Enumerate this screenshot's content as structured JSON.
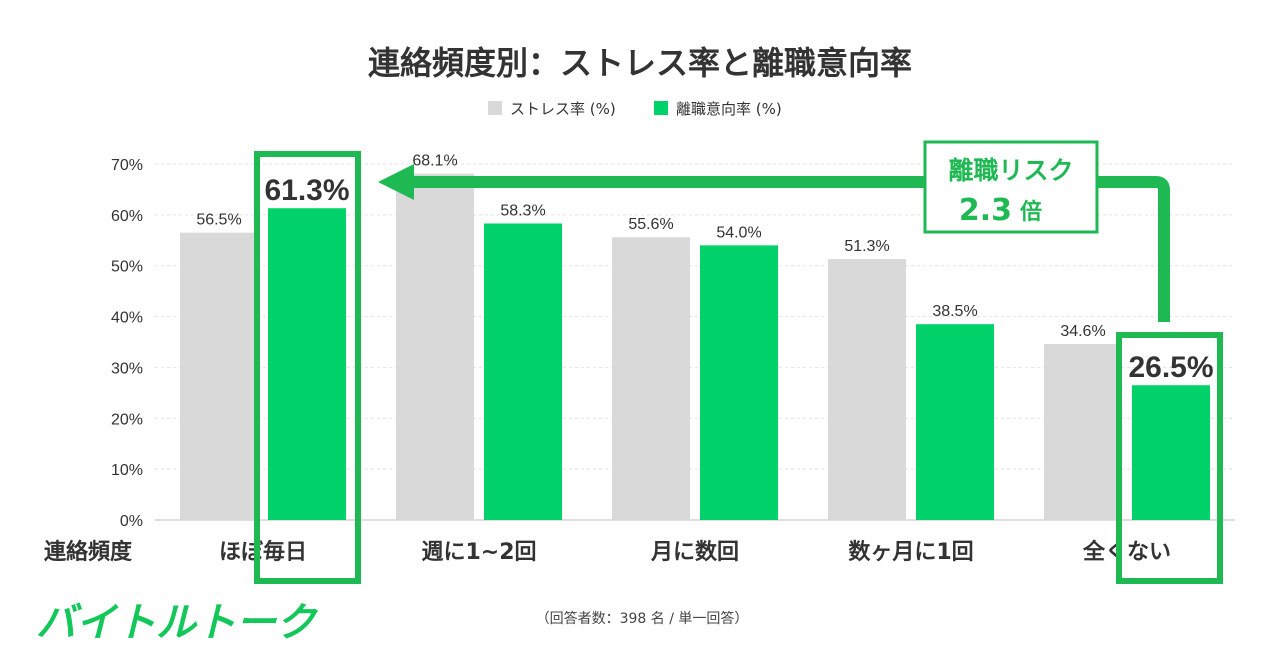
{
  "chart_data": {
    "type": "bar",
    "title": "連絡頻度別：ストレス率と離職意向率",
    "xlabel": "連絡頻度",
    "ylabel": "",
    "ylim": [
      0,
      70
    ],
    "yticks": [
      "0%",
      "10%",
      "20%",
      "30%",
      "40%",
      "50%",
      "60%",
      "70%"
    ],
    "categories": [
      "ほぼ毎日",
      "週に1~2回",
      "月に数回",
      "数ヶ月に1回",
      "全くない"
    ],
    "series": [
      {
        "name": "ストレス率 (%)",
        "color": "#d9d9d9",
        "values": [
          56.5,
          68.1,
          55.6,
          51.3,
          34.6
        ],
        "labels": [
          "56.5%",
          "68.1%",
          "55.6%",
          "51.3%",
          "34.6%"
        ]
      },
      {
        "name": "離職意向率 (%)",
        "color": "#00d26a",
        "values": [
          61.3,
          58.3,
          54.0,
          38.5,
          26.5
        ],
        "labels": [
          "61.3%",
          "58.3%",
          "54.0%",
          "38.5%",
          "26.5%"
        ]
      }
    ],
    "highlighted_categories": [
      0,
      4
    ],
    "callout": {
      "line1": "離職リスク",
      "value": "2.3",
      "unit": "倍"
    },
    "grid": true,
    "legend": "top-center"
  },
  "footnote": "（回答者数：398 名 / 単一回答）",
  "brand": {
    "logo_text": "バイトルトーク"
  },
  "colors": {
    "highlight": "#1fb954",
    "bar_gray": "#d9d9d9",
    "bar_green": "#00d26a",
    "grid": "#e2e2e2"
  }
}
